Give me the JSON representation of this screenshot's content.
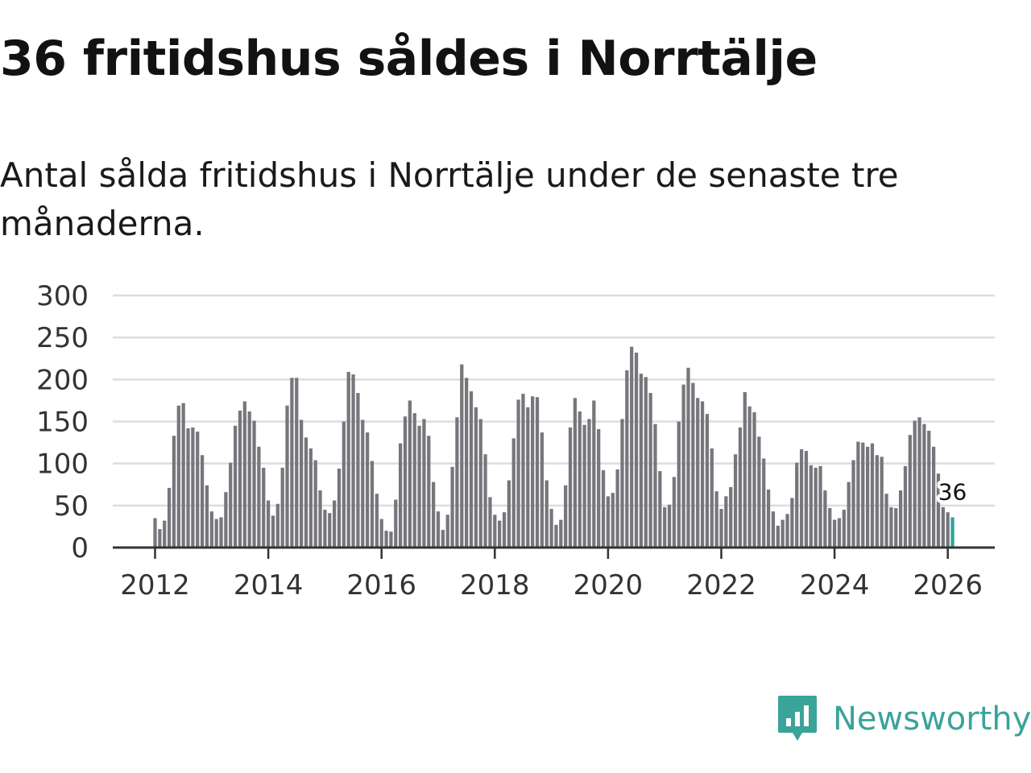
{
  "title": "36 fritidshus såldes i Norrtälje",
  "subtitle": "Antal sålda fritidshus i Norrtälje under de senaste tre månaderna.",
  "brand": {
    "name": "Newsworthy",
    "icon": "newsworthy-logo-icon",
    "color": "#3aa39a"
  },
  "colors": {
    "bar": "#76767c",
    "highlight": "#2fa39a",
    "grid": "#dddddd",
    "axis": "#333333"
  },
  "chart_data": {
    "type": "bar",
    "start_month": "2012-01",
    "ylim": [
      0,
      300
    ],
    "yticks": [
      0,
      50,
      100,
      150,
      200,
      250,
      300
    ],
    "xlim": [
      "2011-01",
      "2027-01"
    ],
    "xticks": [
      {
        "year": "2012",
        "label": "2012"
      },
      {
        "year": "2014",
        "label": "2014"
      },
      {
        "year": "2016",
        "label": "2016"
      },
      {
        "year": "2018",
        "label": "2018"
      },
      {
        "year": "2020",
        "label": "2020"
      },
      {
        "year": "2022",
        "label": "2022"
      },
      {
        "year": "2024",
        "label": "2024"
      },
      {
        "year": "2026",
        "label": "2026"
      }
    ],
    "grid": true,
    "highlight": {
      "date": "2026-02",
      "value": 36,
      "label": "36"
    },
    "values": [
      35,
      22,
      32,
      71,
      133,
      169,
      172,
      142,
      143,
      138,
      110,
      74,
      43,
      34,
      36,
      66,
      101,
      145,
      163,
      174,
      162,
      151,
      120,
      95,
      56,
      38,
      52,
      95,
      169,
      202,
      202,
      152,
      131,
      118,
      104,
      68,
      45,
      41,
      56,
      94,
      150,
      209,
      206,
      184,
      152,
      137,
      103,
      64,
      34,
      20,
      19,
      57,
      124,
      156,
      175,
      160,
      145,
      153,
      133,
      78,
      43,
      21,
      39,
      96,
      155,
      218,
      202,
      186,
      167,
      153,
      111,
      60,
      39,
      32,
      42,
      80,
      130,
      176,
      183,
      167,
      180,
      179,
      137,
      80,
      46,
      27,
      33,
      74,
      143,
      178,
      162,
      146,
      153,
      175,
      141,
      92,
      61,
      65,
      93,
      153,
      211,
      239,
      232,
      207,
      203,
      184,
      147,
      91,
      48,
      51,
      84,
      150,
      194,
      214,
      196,
      178,
      174,
      159,
      118,
      67,
      46,
      61,
      72,
      111,
      143,
      185,
      168,
      161,
      132,
      106,
      69,
      43,
      26,
      33,
      40,
      59,
      101,
      117,
      115,
      98,
      95,
      97,
      68,
      47,
      33,
      35,
      45,
      78,
      104,
      126,
      125,
      120,
      124,
      110,
      108,
      64,
      48,
      47,
      68,
      97,
      134,
      151,
      155,
      147,
      139,
      120,
      88,
      48,
      42,
      36
    ]
  }
}
